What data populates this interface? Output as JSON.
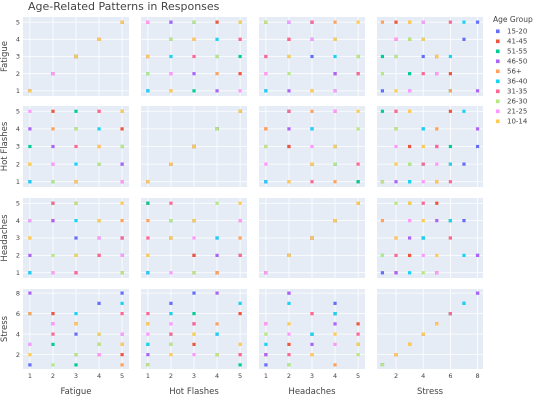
{
  "chart_data": {
    "type": "scatter",
    "title": "Age-Related Patterns in Responses",
    "variables": [
      "Fatigue",
      "Hot Flashes",
      "Headaches",
      "Stress"
    ],
    "axes": {
      "Fatigue": {
        "ticks": [
          1,
          2,
          3,
          4,
          5
        ],
        "range": [
          0.7,
          5.3
        ]
      },
      "Hot Flashes": {
        "ticks": [
          1,
          2,
          3,
          4,
          5
        ],
        "range": [
          0.7,
          5.3
        ]
      },
      "Headaches": {
        "ticks": [
          1,
          2,
          3,
          4,
          5
        ],
        "range": [
          0.7,
          5.3
        ]
      },
      "Stress": {
        "ticks": [
          2,
          4,
          6,
          8
        ],
        "range": [
          0.6,
          8.4
        ]
      }
    },
    "legend": {
      "title": "Age Group",
      "placement": "right",
      "items": [
        {
          "label": "15-20",
          "color": "#636EFA"
        },
        {
          "label": "41-45",
          "color": "#EF553B"
        },
        {
          "label": "51-55",
          "color": "#00CC96"
        },
        {
          "label": "46-50",
          "color": "#AB63FA"
        },
        {
          "label": "56+",
          "color": "#FFA15A"
        },
        {
          "label": "36-40",
          "color": "#19D3F3"
        },
        {
          "label": "31-35",
          "color": "#FF6692"
        },
        {
          "label": "26-30",
          "color": "#B6E880"
        },
        {
          "label": "21-25",
          "color": "#FF97FF"
        },
        {
          "label": "10-14",
          "color": "#FECB52"
        }
      ]
    },
    "grid": true,
    "points": [
      {
        "group": "15-20",
        "Fatigue": 3,
        "Hot Flashes": 4,
        "Headaches": 3,
        "Stress": 4
      },
      {
        "group": "15-20",
        "Fatigue": 1,
        "Hot Flashes": 1,
        "Headaches": 1,
        "Stress": 1
      },
      {
        "group": "15-20",
        "Fatigue": 4,
        "Hot Flashes": 2,
        "Headaches": 4,
        "Stress": 7
      },
      {
        "group": "15-20",
        "Fatigue": 5,
        "Hot Flashes": 3,
        "Headaches": 2,
        "Stress": 8
      },
      {
        "group": "41-45",
        "Fatigue": 2,
        "Hot Flashes": 5,
        "Headaches": 4,
        "Stress": 6
      },
      {
        "group": "41-45",
        "Fatigue": 4,
        "Hot Flashes": 3,
        "Headaches": 2,
        "Stress": 3
      },
      {
        "group": "41-45",
        "Fatigue": 3,
        "Hot Flashes": 1,
        "Headaches": 5,
        "Stress": 5
      },
      {
        "group": "41-45",
        "Fatigue": 5,
        "Hot Flashes": 4,
        "Headaches": 1,
        "Stress": 2
      },
      {
        "group": "51-55",
        "Fatigue": 1,
        "Hot Flashes": 3,
        "Headaches": 4,
        "Stress": 6
      },
      {
        "group": "51-55",
        "Fatigue": 3,
        "Hot Flashes": 5,
        "Headaches": 2,
        "Stress": 1
      },
      {
        "group": "51-55",
        "Fatigue": 5,
        "Hot Flashes": 2,
        "Headaches": 3,
        "Stress": 4
      },
      {
        "group": "51-55",
        "Fatigue": 2,
        "Hot Flashes": 1,
        "Headaches": 5,
        "Stress": 3
      },
      {
        "group": "46-50",
        "Fatigue": 2,
        "Hot Flashes": 3,
        "Headaches": 4,
        "Stress": 5
      },
      {
        "group": "46-50",
        "Fatigue": 5,
        "Hot Flashes": 2,
        "Headaches": 3,
        "Stress": 3
      },
      {
        "group": "46-50",
        "Fatigue": 1,
        "Hot Flashes": 4,
        "Headaches": 2,
        "Stress": 8
      },
      {
        "group": "46-50",
        "Fatigue": 3,
        "Hot Flashes": 1,
        "Headaches": 1,
        "Stress": 2
      },
      {
        "group": "56+",
        "Fatigue": 4,
        "Hot Flashes": 5,
        "Headaches": 3,
        "Stress": 2
      },
      {
        "group": "56+",
        "Fatigue": 2,
        "Hot Flashes": 4,
        "Headaches": 1,
        "Stress": 5
      },
      {
        "group": "56+",
        "Fatigue": 5,
        "Hot Flashes": 1,
        "Headaches": 4,
        "Stress": 1
      },
      {
        "group": "56+",
        "Fatigue": 1,
        "Hot Flashes": 2,
        "Headaches": 3,
        "Stress": 6
      },
      {
        "group": "36-40",
        "Fatigue": 4,
        "Hot Flashes": 4,
        "Headaches": 3,
        "Stress": 4
      },
      {
        "group": "36-40",
        "Fatigue": 1,
        "Hot Flashes": 1,
        "Headaches": 1,
        "Stress": 3
      },
      {
        "group": "36-40",
        "Fatigue": 3,
        "Hot Flashes": 2,
        "Headaches": 4,
        "Stress": 6
      },
      {
        "group": "36-40",
        "Fatigue": 5,
        "Hot Flashes": 5,
        "Headaches": 2,
        "Stress": 7
      },
      {
        "group": "31-35",
        "Fatigue": 3,
        "Hot Flashes": 3,
        "Headaches": 1,
        "Stress": 5
      },
      {
        "group": "31-35",
        "Fatigue": 2,
        "Hot Flashes": 2,
        "Headaches": 5,
        "Stress": 4
      },
      {
        "group": "31-35",
        "Fatigue": 4,
        "Hot Flashes": 5,
        "Headaches": 2,
        "Stress": 2
      },
      {
        "group": "31-35",
        "Fatigue": 5,
        "Hot Flashes": 1,
        "Headaches": 3,
        "Stress": 6
      },
      {
        "group": "26-30",
        "Fatigue": 3,
        "Hot Flashes": 4,
        "Headaches": 5,
        "Stress": 2
      },
      {
        "group": "26-30",
        "Fatigue": 5,
        "Hot Flashes": 3,
        "Headaches": 1,
        "Stress": 4
      },
      {
        "group": "26-30",
        "Fatigue": 2,
        "Hot Flashes": 1,
        "Headaches": 2,
        "Stress": 1
      },
      {
        "group": "26-30",
        "Fatigue": 4,
        "Hot Flashes": 2,
        "Headaches": 4,
        "Stress": 3
      },
      {
        "group": "21-25",
        "Fatigue": 4,
        "Hot Flashes": 3,
        "Headaches": 3,
        "Stress": 2
      },
      {
        "group": "21-25",
        "Fatigue": 2,
        "Hot Flashes": 2,
        "Headaches": 1,
        "Stress": 5
      },
      {
        "group": "21-25",
        "Fatigue": 1,
        "Hot Flashes": 5,
        "Headaches": 4,
        "Stress": 3
      },
      {
        "group": "21-25",
        "Fatigue": 5,
        "Hot Flashes": 1,
        "Headaches": 2,
        "Stress": 4
      },
      {
        "group": "10-14",
        "Fatigue": 5,
        "Hot Flashes": 5,
        "Headaches": 5,
        "Stress": 3
      },
      {
        "group": "10-14",
        "Fatigue": 1,
        "Hot Flashes": 2,
        "Headaches": 3,
        "Stress": 2
      },
      {
        "group": "10-14",
        "Fatigue": 3,
        "Hot Flashes": 1,
        "Headaches": 2,
        "Stress": 5
      },
      {
        "group": "10-14",
        "Fatigue": 4,
        "Hot Flashes": 3,
        "Headaches": 4,
        "Stress": 4
      }
    ]
  }
}
